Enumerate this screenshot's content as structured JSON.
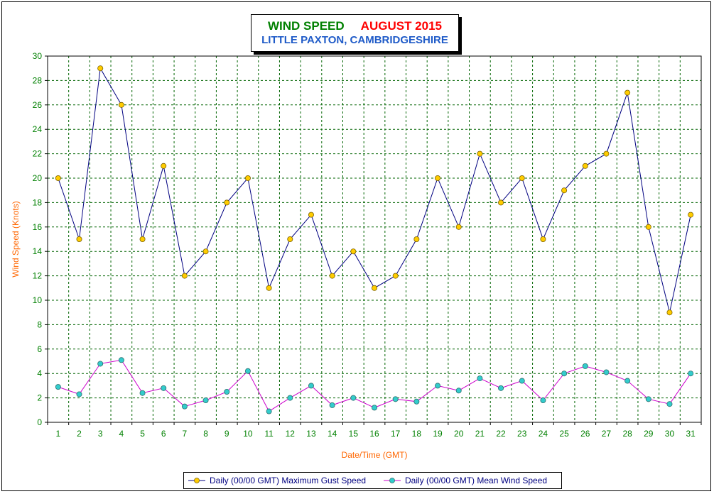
{
  "chart_data": {
    "type": "line",
    "title": {
      "part1": "WIND SPEED",
      "part2": "AUGUST 2015",
      "subtitle": "LITTLE PAXTON, CAMBRIDGESHIRE"
    },
    "xlabel": "Date/Time (GMT)",
    "ylabel": "Wind Speed (Knots)",
    "ylim": [
      0,
      30
    ],
    "yticks": [
      0,
      2,
      4,
      6,
      8,
      10,
      12,
      14,
      16,
      18,
      20,
      22,
      24,
      26,
      28,
      30
    ],
    "categories": [
      "1",
      "2",
      "3",
      "4",
      "5",
      "6",
      "7",
      "8",
      "9",
      "10",
      "11",
      "12",
      "13",
      "14",
      "15",
      "16",
      "17",
      "18",
      "19",
      "20",
      "21",
      "22",
      "23",
      "24",
      "25",
      "26",
      "27",
      "28",
      "29",
      "30",
      "31"
    ],
    "grid": true,
    "legend_position": "bottom",
    "series": [
      {
        "name": "Daily (00/00 GMT) Maximum Gust Speed",
        "line_color": "#000080",
        "marker_color": "#ffcc00",
        "values": [
          20,
          15,
          29,
          26,
          15,
          21,
          12,
          14,
          18,
          20,
          11,
          15,
          17,
          12,
          14,
          11,
          12,
          15,
          20,
          16,
          22,
          18,
          20,
          15,
          19,
          21,
          22,
          27,
          16,
          9,
          17
        ]
      },
      {
        "name": "Daily (00/00 GMT) Mean Wind Speed",
        "line_color": "#cc00cc",
        "marker_color": "#33cccc",
        "values": [
          2.9,
          2.3,
          4.8,
          5.1,
          2.4,
          2.8,
          1.3,
          1.8,
          2.5,
          4.2,
          0.9,
          2.0,
          3.0,
          1.4,
          2.0,
          1.2,
          1.9,
          1.7,
          3.0,
          2.6,
          3.6,
          2.8,
          3.4,
          1.8,
          4.0,
          4.6,
          4.1,
          3.4,
          1.9,
          1.5,
          4.0
        ]
      }
    ]
  },
  "colors": {
    "title_green": "#008000",
    "title_red": "#ff0000",
    "title_blue": "#1f5bc8",
    "axis_label": "#ff6600",
    "tick_label": "#008000",
    "grid": "#006400"
  }
}
